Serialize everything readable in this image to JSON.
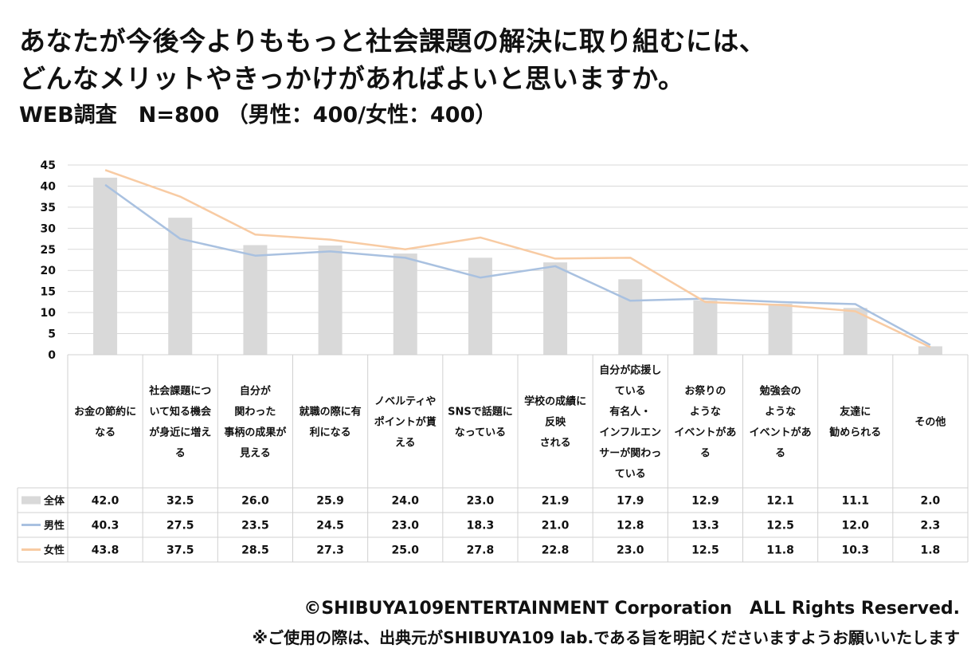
{
  "header": {
    "title_line1": "あなたが今後今よりももっと社会課題の解決に取り組むには、",
    "title_line2": "どんなメリットやきっかけがあればよいと思いますか。",
    "subtitle": "WEB調査　N=800 （男性：400/女性：400）"
  },
  "footer": {
    "copyright": "©SHIBUYA109ENTERTAINMENT Corporation　ALL Rights Reserved.",
    "notice": "※ご使用の際は、出典元がSHIBUYA109 lab.である旨を明記くださいますようお願いいたします"
  },
  "chart_data": {
    "type": "bar",
    "ylim": [
      0,
      45
    ],
    "yticks": [
      0,
      5,
      10,
      15,
      20,
      25,
      30,
      35,
      40,
      45
    ],
    "grid": true,
    "legend": "table-left",
    "categories": [
      [
        "お金の節約に",
        "なる"
      ],
      [
        "社会課題につ",
        "いて知る機会",
        "が身近に増え",
        "る"
      ],
      [
        "自分が",
        "関わった",
        "事柄の成果が",
        "見える"
      ],
      [
        "就職の際に有",
        "利になる"
      ],
      [
        "ノベルティや",
        "ポイントが貰",
        "える"
      ],
      [
        "SNSで話題に",
        "なっている"
      ],
      [
        "学校の成績に",
        "反映",
        "される"
      ],
      [
        "自分が応援し",
        "ている",
        "有名人・",
        "インフルエン",
        "サーが関わっ",
        "ている"
      ],
      [
        "お祭りの",
        "ような",
        "イベントがあ",
        "る"
      ],
      [
        "勉強会の",
        "ような",
        "イベントがあ",
        "る"
      ],
      [
        "友達に",
        "勧められる"
      ],
      [
        "その他"
      ]
    ],
    "series": [
      {
        "name": "全体",
        "kind": "bar",
        "color": "#d9d9d9",
        "values": [
          42.0,
          32.5,
          26.0,
          25.9,
          24.0,
          23.0,
          21.9,
          17.9,
          12.9,
          12.1,
          11.1,
          2.0
        ]
      },
      {
        "name": "男性",
        "kind": "line",
        "color": "#a9c1e0",
        "values": [
          40.3,
          27.5,
          23.5,
          24.5,
          23.0,
          18.3,
          21.0,
          12.8,
          13.3,
          12.5,
          12.0,
          2.3
        ]
      },
      {
        "name": "女性",
        "kind": "line",
        "color": "#f8cba3",
        "values": [
          43.8,
          37.5,
          28.5,
          27.3,
          25.0,
          27.8,
          22.8,
          23.0,
          12.5,
          11.8,
          10.3,
          1.8
        ]
      }
    ]
  }
}
